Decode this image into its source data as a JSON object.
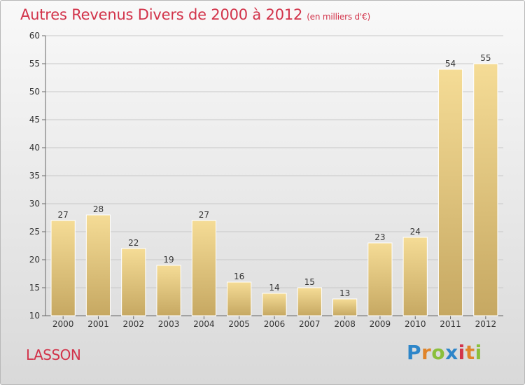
{
  "header": {
    "title": "Autres Revenus Divers de 2000 à 2012",
    "subtitle": "(en milliers d'€)"
  },
  "footer": {
    "commune": "LASSON",
    "logo_text": "Proxiti",
    "logo_letters": [
      {
        "ch": "P",
        "color": "#2e86c9"
      },
      {
        "ch": "r",
        "color": "#e0842a"
      },
      {
        "ch": "o",
        "color": "#8abf3a"
      },
      {
        "ch": "x",
        "color": "#2e86c9"
      },
      {
        "ch": "i",
        "color": "#d2334a"
      },
      {
        "ch": "t",
        "color": "#e0842a"
      },
      {
        "ch": "i",
        "color": "#8abf3a"
      }
    ]
  },
  "colors": {
    "title": "#d2334a",
    "bar_top": "#f5dc96",
    "bar_bottom": "#c6a862",
    "grid": "#c8c8c8",
    "axis_text": "#333333"
  },
  "chart_data": {
    "type": "bar",
    "title": "Autres Revenus Divers de 2000 à 2012",
    "subtitle": "(en milliers d'€)",
    "categories": [
      "2000",
      "2001",
      "2002",
      "2003",
      "2004",
      "2005",
      "2006",
      "2007",
      "2008",
      "2009",
      "2010",
      "2011",
      "2012"
    ],
    "values": [
      27,
      28,
      22,
      19,
      27,
      16,
      14,
      15,
      13,
      23,
      24,
      54,
      55
    ],
    "ylim": [
      10,
      60
    ],
    "yticks": [
      10,
      15,
      20,
      25,
      30,
      35,
      40,
      45,
      50,
      55,
      60
    ],
    "grid": true,
    "xlabel": "",
    "ylabel": ""
  }
}
